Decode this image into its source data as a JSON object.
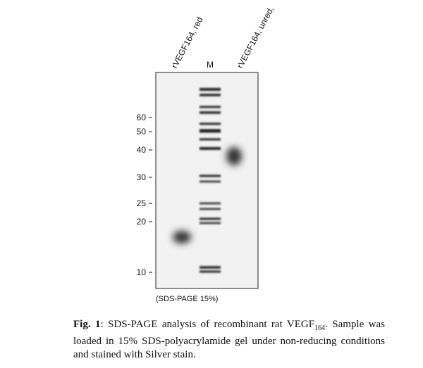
{
  "lanes": [
    "rVEGF164, red",
    "M",
    "rVEGF164, unred."
  ],
  "markers": [
    60,
    50,
    40,
    30,
    25,
    20,
    10
  ],
  "gel_note": "(SDS-PAGE 15%)",
  "caption": {
    "label": "Fig. 1",
    "text_before": ": SDS-PAGE analysis of recombinant rat VEGF",
    "subscript": "164",
    "text_after": ". Sample was loaded in 15% SDS-polyacrylamide gel under non-reducing conditions and stained with Silver stain."
  }
}
